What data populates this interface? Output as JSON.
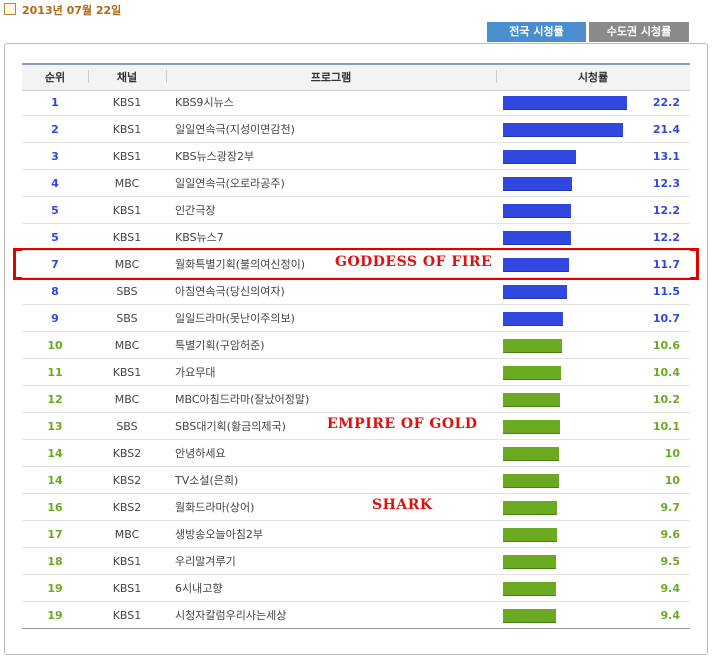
{
  "header": {
    "date": "2013년 07월 22일",
    "tabs": [
      "전국 시청률",
      "수도권 시청률"
    ]
  },
  "table": {
    "columns": [
      "순위",
      "채널",
      "프로그램",
      "시청률"
    ],
    "rows": [
      {
        "rank": 1,
        "channel": "KBS1",
        "program": "KBS9시뉴스",
        "rating": 22.2,
        "color": "#3048e0"
      },
      {
        "rank": 2,
        "channel": "KBS1",
        "program": "일일연속극(지성이면감천)",
        "rating": 21.4,
        "color": "#3048e0"
      },
      {
        "rank": 3,
        "channel": "KBS1",
        "program": "KBS뉴스광장2부",
        "rating": 13.1,
        "color": "#3048e0"
      },
      {
        "rank": 4,
        "channel": "MBC",
        "program": "일일연속극(오로라공주)",
        "rating": 12.3,
        "color": "#3048e0"
      },
      {
        "rank": 5,
        "channel": "KBS1",
        "program": "인간극장",
        "rating": 12.2,
        "color": "#3048e0"
      },
      {
        "rank": 5,
        "channel": "KBS1",
        "program": "KBS뉴스7",
        "rating": 12.2,
        "color": "#3048e0"
      },
      {
        "rank": 7,
        "channel": "MBC",
        "program": "월화특별기획(불의여신정이)",
        "rating": 11.7,
        "color": "#3048e0"
      },
      {
        "rank": 8,
        "channel": "SBS",
        "program": "아침연속극(당신의여자)",
        "rating": 11.5,
        "color": "#3048e0"
      },
      {
        "rank": 9,
        "channel": "SBS",
        "program": "일일드라마(못난이주의보)",
        "rating": 10.7,
        "color": "#3048e0"
      },
      {
        "rank": 10,
        "channel": "MBC",
        "program": "특별기획(구암허준)",
        "rating": 10.6,
        "color": "#6aaa20"
      },
      {
        "rank": 11,
        "channel": "KBS1",
        "program": "가요무대",
        "rating": 10.4,
        "color": "#6aaa20"
      },
      {
        "rank": 12,
        "channel": "MBC",
        "program": "MBC아침드라마(잘났어정말)",
        "rating": 10.2,
        "color": "#6aaa20"
      },
      {
        "rank": 13,
        "channel": "SBS",
        "program": "SBS대기획(황금의제국)",
        "rating": 10.1,
        "color": "#6aaa20"
      },
      {
        "rank": 14,
        "channel": "KBS2",
        "program": "안녕하세요",
        "rating": 10,
        "color": "#6aaa20"
      },
      {
        "rank": 14,
        "channel": "KBS2",
        "program": "TV소설(은희)",
        "rating": 10,
        "color": "#6aaa20"
      },
      {
        "rank": 16,
        "channel": "KBS2",
        "program": "월화드라마(상어)",
        "rating": 9.7,
        "color": "#6aaa20"
      },
      {
        "rank": 17,
        "channel": "MBC",
        "program": "생방송오늘아침2부",
        "rating": 9.6,
        "color": "#6aaa20"
      },
      {
        "rank": 18,
        "channel": "KBS1",
        "program": "우리말겨루기",
        "rating": 9.5,
        "color": "#6aaa20"
      },
      {
        "rank": 19,
        "channel": "KBS1",
        "program": "6시내고향",
        "rating": 9.4,
        "color": "#6aaa20"
      },
      {
        "rank": 19,
        "channel": "KBS1",
        "program": "시청자칼럼우리사는세상",
        "rating": 9.4,
        "color": "#6aaa20"
      }
    ]
  },
  "annotations": [
    "GODDESS OF FIRE",
    "EMPIRE OF GOLD",
    "SHARK"
  ]
}
